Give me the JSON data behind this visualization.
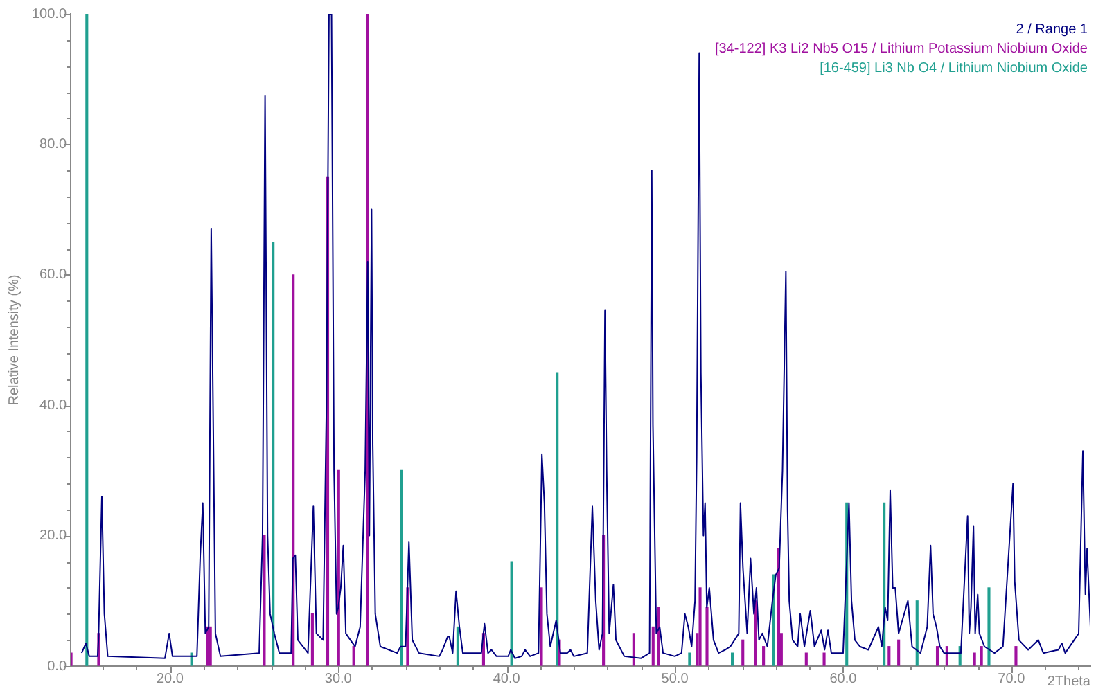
{
  "chart_data": {
    "type": "line",
    "xlabel": "2Theta",
    "ylabel": "Relative Intensity (%)",
    "legend": "top right",
    "marker": "none",
    "xlim": [
      14.1,
      74.7
    ],
    "ylim": [
      0,
      100
    ],
    "xticks": [
      {
        "value": 16,
        "label": null
      },
      {
        "value": 18,
        "label": null
      },
      {
        "value": 20,
        "label": "20.0"
      },
      {
        "value": 22,
        "label": null
      },
      {
        "value": 24,
        "label": null
      },
      {
        "value": 26,
        "label": null
      },
      {
        "value": 28,
        "label": null
      },
      {
        "value": 30,
        "label": "30.0"
      },
      {
        "value": 32,
        "label": null
      },
      {
        "value": 34,
        "label": null
      },
      {
        "value": 36,
        "label": null
      },
      {
        "value": 38,
        "label": null
      },
      {
        "value": 40,
        "label": "40.0"
      },
      {
        "value": 42,
        "label": null
      },
      {
        "value": 44,
        "label": null
      },
      {
        "value": 46,
        "label": null
      },
      {
        "value": 48,
        "label": null
      },
      {
        "value": 50,
        "label": "50.0"
      },
      {
        "value": 52,
        "label": null
      },
      {
        "value": 54,
        "label": null
      },
      {
        "value": 56,
        "label": null
      },
      {
        "value": 58,
        "label": null
      },
      {
        "value": 60,
        "label": "60.0"
      },
      {
        "value": 62,
        "label": null
      },
      {
        "value": 64,
        "label": null
      },
      {
        "value": 66,
        "label": null
      },
      {
        "value": 68,
        "label": null
      },
      {
        "value": 70,
        "label": "70.0"
      },
      {
        "value": 72,
        "label": null
      },
      {
        "value": 74,
        "label": null
      }
    ],
    "yticks": [
      {
        "value": 0,
        "label": "0.0"
      },
      {
        "value": 4,
        "label": null
      },
      {
        "value": 8,
        "label": null
      },
      {
        "value": 12,
        "label": null
      },
      {
        "value": 16,
        "label": null
      },
      {
        "value": 20,
        "label": "20.0"
      },
      {
        "value": 24,
        "label": null
      },
      {
        "value": 28,
        "label": null
      },
      {
        "value": 32,
        "label": null
      },
      {
        "value": 36,
        "label": null
      },
      {
        "value": 40,
        "label": "40.0"
      },
      {
        "value": 44,
        "label": null
      },
      {
        "value": 48,
        "label": null
      },
      {
        "value": 52,
        "label": null
      },
      {
        "value": 56,
        "label": null
      },
      {
        "value": 60,
        "label": "60.0"
      },
      {
        "value": 64,
        "label": null
      },
      {
        "value": 68,
        "label": null
      },
      {
        "value": 72,
        "label": null
      },
      {
        "value": 76,
        "label": null
      },
      {
        "value": 80,
        "label": "80.0"
      },
      {
        "value": 84,
        "label": null
      },
      {
        "value": 88,
        "label": null
      },
      {
        "value": 92,
        "label": null
      },
      {
        "value": 96,
        "label": null
      },
      {
        "value": 100,
        "label": "100.0"
      }
    ],
    "series": [
      {
        "name": "2 / Range 1",
        "color": "#000080",
        "x": [
          14.75,
          15.0,
          15.2,
          15.7,
          15.75,
          15.95,
          16.1,
          16.3,
          19.7,
          19.95,
          20.15,
          21.6,
          21.8,
          21.95,
          22.1,
          22.3,
          22.45,
          22.7,
          23.0,
          25.3,
          25.5,
          25.65,
          25.8,
          25.95,
          26.2,
          26.5,
          27.2,
          27.3,
          27.45,
          27.6,
          28.2,
          28.52,
          28.7,
          29.1,
          29.3,
          29.45,
          29.6,
          29.75,
          29.9,
          30.0,
          30.15,
          30.3,
          30.45,
          31.0,
          31.3,
          31.6,
          31.75,
          31.85,
          31.98,
          32.05,
          32.2,
          32.5,
          33.5,
          33.7,
          34.0,
          34.2,
          34.4,
          34.8,
          36.0,
          36.2,
          36.5,
          36.6,
          36.8,
          37.0,
          37.2,
          37.4,
          38.5,
          38.69,
          38.9,
          39.1,
          39.4,
          40.1,
          40.25,
          40.5,
          40.9,
          41.1,
          41.4,
          41.9,
          42.1,
          42.25,
          42.4,
          42.6,
          42.95,
          43.2,
          43.6,
          43.8,
          44.0,
          44.8,
          45.1,
          45.3,
          45.5,
          45.7,
          45.85,
          45.95,
          46.1,
          46.35,
          46.5,
          46.7,
          47.0,
          48.0,
          48.5,
          48.63,
          48.7,
          48.9,
          49.1,
          49.3,
          50.0,
          50.4,
          50.6,
          50.8,
          51.0,
          51.2,
          51.3,
          51.45,
          51.55,
          51.7,
          51.8,
          51.9,
          52.05,
          52.3,
          52.6,
          53.0,
          53.3,
          53.8,
          53.9,
          54.05,
          54.3,
          54.5,
          54.7,
          54.85,
          55.0,
          55.2,
          55.5,
          55.8,
          56.0,
          56.2,
          56.4,
          56.6,
          56.7,
          56.8,
          57.0,
          57.3,
          57.45,
          57.7,
          58.05,
          58.3,
          58.7,
          58.9,
          59.1,
          59.3,
          60.0,
          60.35,
          60.5,
          60.7,
          61.0,
          61.5,
          62.1,
          62.3,
          62.5,
          62.65,
          62.8,
          62.95,
          63.1,
          63.3,
          63.85,
          64.1,
          64.6,
          65.0,
          65.2,
          65.35,
          65.55,
          65.75,
          66.0,
          67.0,
          67.4,
          67.5,
          67.6,
          67.75,
          67.85,
          68.0,
          68.1,
          68.4,
          69.0,
          69.5,
          70.1,
          70.2,
          70.45,
          71.0,
          71.6,
          71.9,
          72.8,
          73.0,
          73.2,
          74.0,
          74.25,
          74.4,
          74.5,
          74.7
        ],
        "values": [
          2,
          3.5,
          1.5,
          1.5,
          4,
          26,
          8,
          1.5,
          1.2,
          5,
          1.5,
          1.5,
          17,
          25,
          5,
          6,
          67,
          5,
          1.5,
          2,
          20,
          87.5,
          20,
          8,
          5,
          2,
          2,
          16.5,
          17,
          4,
          2,
          24.5,
          5,
          4,
          40,
          100,
          100,
          30,
          8,
          9,
          12,
          18.5,
          5,
          3,
          6,
          30,
          62,
          20,
          70,
          34,
          8,
          3,
          2,
          3,
          3,
          19,
          4,
          2,
          1.5,
          2.5,
          4.5,
          4.5,
          2,
          11.5,
          6,
          2,
          2,
          6.5,
          2,
          2.5,
          1.5,
          1.5,
          2.5,
          1.2,
          1.5,
          2.5,
          1.5,
          2,
          32.5,
          25,
          8,
          3,
          7,
          2,
          2,
          2.5,
          1.5,
          2,
          24.5,
          10,
          2.5,
          5,
          54.5,
          30,
          5,
          12.5,
          4,
          3,
          1.5,
          1.2,
          2,
          76,
          37,
          5,
          6,
          2,
          1.5,
          2,
          8,
          6,
          3,
          10,
          32,
          94,
          45,
          20,
          25,
          9,
          12,
          4,
          2,
          2.5,
          3,
          5,
          25,
          15,
          5,
          16.5,
          8,
          12,
          4,
          5,
          3,
          10,
          14,
          15,
          30,
          60.5,
          24,
          10,
          4,
          3,
          8,
          3,
          8.5,
          3,
          5.5,
          2.5,
          5.5,
          2,
          2,
          25,
          10,
          4,
          3,
          2.5,
          6,
          3,
          9,
          7,
          27,
          12,
          12,
          5,
          10,
          3,
          2,
          6,
          18.5,
          8,
          6,
          3,
          2,
          2,
          23,
          5,
          9,
          21.5,
          5,
          11,
          5,
          3,
          2,
          3,
          28,
          13,
          4,
          2.5,
          4,
          2,
          2.5,
          3.5,
          2,
          5,
          33,
          11,
          18,
          6
        ]
      },
      {
        "name": "[34-122] K3 Li2 Nb5 O15 / Lithium Potassium Niobium Oxide",
        "type": "bar",
        "color": "#a0109f",
        "x": [
          14.18,
          15.82,
          22.3,
          22.46,
          25.66,
          27.38,
          28.52,
          29.43,
          30.08,
          30.98,
          31.8,
          34.18,
          38.69,
          42.13,
          43.2,
          45.82,
          47.62,
          48.77,
          49.1,
          51.39,
          51.56,
          51.97,
          54.1,
          54.84,
          55.33,
          56.23,
          56.39,
          57.87,
          58.93,
          62.79,
          63.36,
          65.66,
          66.23,
          67.87,
          68.28,
          70.33
        ],
        "values": [
          2,
          5,
          6,
          6,
          20,
          60,
          8,
          75,
          30,
          3,
          100,
          12,
          5,
          12,
          4,
          20,
          5,
          6,
          9,
          5,
          12,
          9,
          4,
          10,
          3,
          18,
          5,
          2,
          2,
          3,
          4,
          3,
          3,
          2,
          3,
          3
        ]
      },
      {
        "name": "[16-459] Li3 Nb O4 / Lithium Niobium Oxide",
        "type": "bar",
        "color": "#20a090",
        "x": [
          15.0,
          21.23,
          26.07,
          33.69,
          37.05,
          40.25,
          42.95,
          50.82,
          53.36,
          55.82,
          60.16,
          62.38,
          64.34,
          66.89,
          68.61
        ],
        "values": [
          100,
          2,
          65,
          30,
          6,
          16,
          45,
          2,
          2,
          14,
          25,
          25,
          10,
          3,
          12
        ]
      }
    ]
  }
}
